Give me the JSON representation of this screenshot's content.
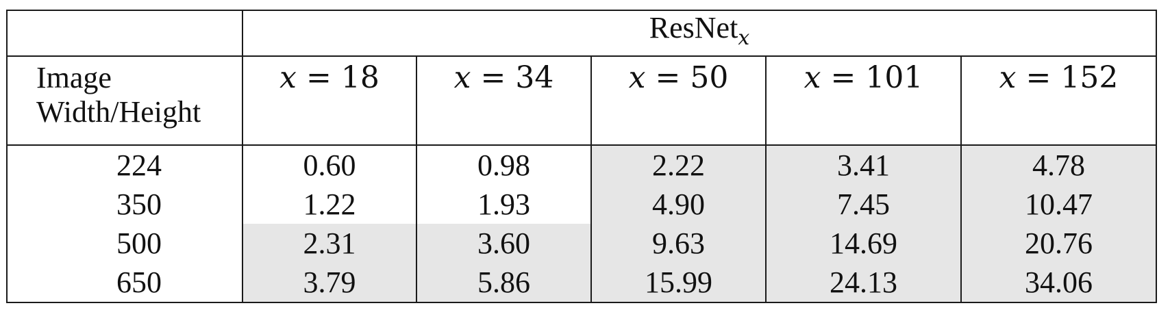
{
  "table": {
    "group_header": {
      "base": "ResNet",
      "subscript": "x"
    },
    "row_header": [
      "Image",
      "Width/Height"
    ],
    "column_variable": "x",
    "columns": [
      "18",
      "34",
      "50",
      "101",
      "152"
    ],
    "rows": [
      {
        "label": "224",
        "values": [
          "0.60",
          "0.98",
          "2.22",
          "3.41",
          "4.78"
        ]
      },
      {
        "label": "350",
        "values": [
          "1.22",
          "1.93",
          "4.90",
          "7.45",
          "10.47"
        ]
      },
      {
        "label": "500",
        "values": [
          "2.31",
          "3.60",
          "9.63",
          "14.69",
          "20.76"
        ]
      },
      {
        "label": "650",
        "values": [
          "3.79",
          "5.86",
          "15.99",
          "24.13",
          "34.06"
        ]
      }
    ],
    "shade_color": "#e6e6e6"
  }
}
